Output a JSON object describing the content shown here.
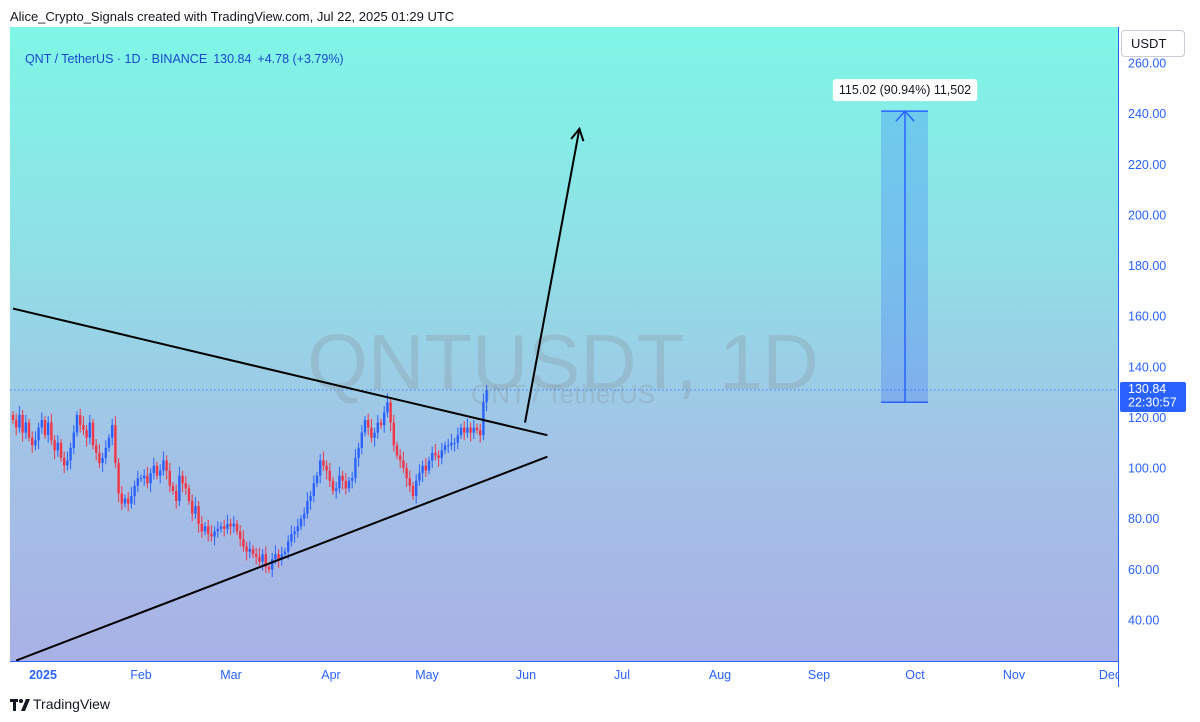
{
  "header": {
    "text": "Alice_Crypto_Signals created with TradingView.com, Jul 22, 2025 01:29 UTC"
  },
  "symbol": {
    "name": "QNT / TetherUS · 1D · BINANCE",
    "price": "130.84",
    "change": "+4.78 (+3.79%)"
  },
  "watermark": {
    "main": "QNTUSDT, 1D",
    "sub": "QNT / TetherUS"
  },
  "currency_button": "USDT",
  "price_label": {
    "price": "130.84",
    "countdown": "22:30:57"
  },
  "measure_label": "115.02 (90.94%) 11,502",
  "footer": {
    "brand": "TradingView"
  },
  "colors": {
    "up": "#2962ff",
    "down": "#f23645",
    "line": "#000000",
    "accent": "#2962ff"
  },
  "chart_data": {
    "type": "candlestick",
    "symbol": "QNTUSDT",
    "interval": "1D",
    "y_ticks": [
      "40.00",
      "60.00",
      "80.00",
      "100.00",
      "120.00",
      "140.00",
      "160.00",
      "180.00",
      "200.00",
      "220.00",
      "240.00",
      "260.00"
    ],
    "x_ticks": [
      "2025",
      "Feb",
      "Mar",
      "Apr",
      "May",
      "Jun",
      "Jul",
      "Aug",
      "Sep",
      "Oct",
      "Nov",
      "Dec"
    ],
    "ylim": [
      20,
      270
    ],
    "last_price": 130.84,
    "closes": [
      119,
      116,
      121,
      114,
      118,
      112,
      109,
      111,
      116,
      119,
      113,
      118,
      111,
      107,
      110,
      104,
      101,
      103,
      108,
      114,
      121,
      117,
      115,
      112,
      118,
      109,
      106,
      102,
      104,
      108,
      112,
      117,
      102,
      90,
      86,
      88,
      86,
      89,
      93,
      96,
      96,
      97,
      94,
      98,
      101,
      97,
      99,
      103,
      99,
      93,
      91,
      87,
      97,
      94,
      92,
      87,
      82,
      85,
      78,
      75,
      77,
      74,
      73,
      75,
      76,
      77,
      76,
      78,
      77,
      78,
      75,
      72,
      69,
      67,
      68,
      66,
      65,
      63,
      66,
      61,
      60,
      64,
      66,
      64,
      66,
      67,
      71,
      74,
      75,
      77,
      80,
      82,
      87,
      89,
      94,
      97,
      103,
      101,
      99,
      95,
      91,
      92,
      97,
      95,
      92,
      95,
      96,
      104,
      108,
      114,
      119,
      116,
      112,
      114,
      118,
      117,
      122,
      126,
      118,
      109,
      105,
      103,
      100,
      96,
      93,
      89,
      95,
      98,
      101,
      99,
      103,
      106,
      105,
      104,
      107,
      109,
      109,
      110,
      110,
      113,
      116,
      114,
      116,
      114,
      116,
      115,
      113,
      126,
      130.84
    ],
    "trendlines": [
      {
        "name": "descending-resistance",
        "from": [
          0,
          163
        ],
        "to": [
          167,
          113
        ]
      },
      {
        "name": "ascending-support",
        "from": [
          1,
          24
        ],
        "to": [
          167,
          104.5
        ]
      }
    ],
    "projection_arrow": {
      "from": [
        160,
        118
      ],
      "to": [
        177,
        234
      ]
    },
    "measure": {
      "from_price": 126,
      "to_price": 241,
      "change": 115.02,
      "percent": 90.94,
      "ticks": 11502
    }
  }
}
